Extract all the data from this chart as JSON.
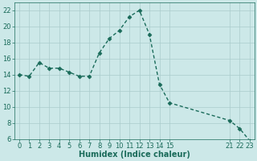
{
  "x_data": [
    0,
    1,
    2,
    3,
    4,
    5,
    6,
    7,
    8,
    9,
    10,
    11,
    12,
    13,
    14,
    15,
    21,
    22,
    23
  ],
  "y_data": [
    14.0,
    13.8,
    15.5,
    14.8,
    14.8,
    14.3,
    13.8,
    13.8,
    16.7,
    18.5,
    19.5,
    21.2,
    22.0,
    19.0,
    12.8,
    10.5,
    8.3,
    7.3,
    5.8
  ],
  "line_color": "#1a6b5a",
  "marker_color": "#1a6b5a",
  "bg_color": "#cce8e8",
  "grid_color": "#aacccc",
  "xlabel": "Humidex (Indice chaleur)",
  "ylim": [
    6,
    23
  ],
  "yticks": [
    6,
    8,
    10,
    12,
    14,
    16,
    18,
    20,
    22
  ],
  "xlabel_fontsize": 7,
  "tick_fontsize": 6,
  "line_width": 1.0,
  "marker_size": 2.5
}
